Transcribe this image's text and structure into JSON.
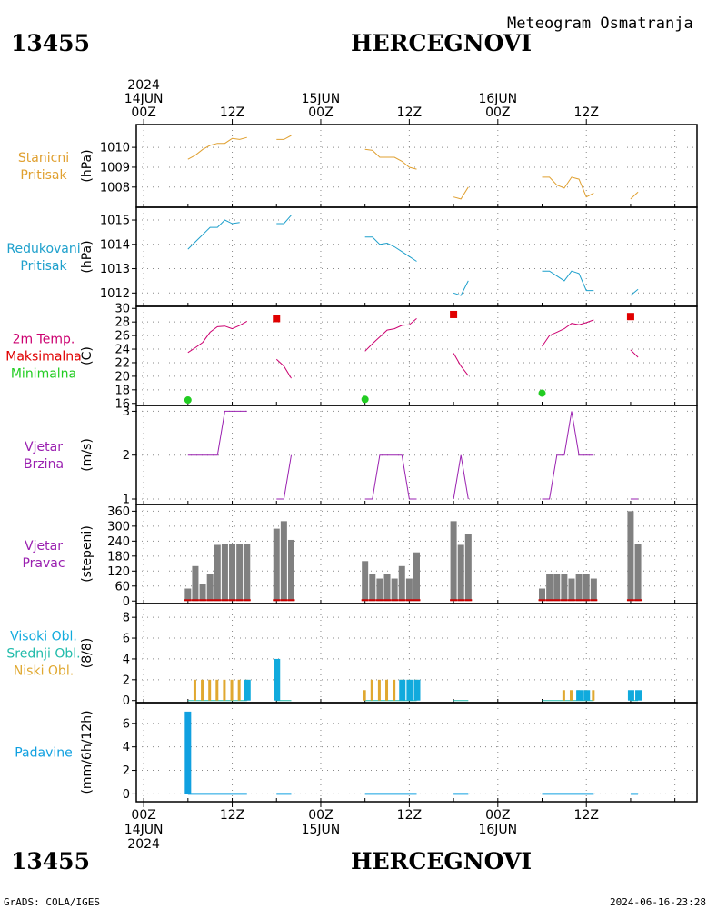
{
  "header": {
    "product": "Meteogram Osmatranja",
    "station_id": "13455",
    "station_name": "HERCEGNOVI"
  },
  "footer": {
    "credit": "GrADS: COLA/IGES",
    "timestamp": "2024-06-16-23:28"
  },
  "colors": {
    "pressure": "#e0a030",
    "reduced": "#1ea0cc",
    "tmax": "#e00000",
    "tmin": "#22cc22",
    "tcurve": "#cc0070",
    "wind": "#9a20b0",
    "bars": "#808080",
    "dir_base": "#cc0000",
    "cloud_high": "#10aadd",
    "cloud_mid": "#20bbaa",
    "cloud_low": "#e0a830",
    "precip": "#10a0e0"
  },
  "chart_data": {
    "type": "line",
    "time_axis": {
      "x_min": -1,
      "x_max": 75,
      "top_labels": [
        {
          "x": 0,
          "lines": [
            "2024",
            "14JUN",
            "00Z"
          ]
        },
        {
          "x": 12,
          "lines": [
            "12Z"
          ]
        },
        {
          "x": 24,
          "lines": [
            "15JUN",
            "00Z"
          ]
        },
        {
          "x": 36,
          "lines": [
            "12Z"
          ]
        },
        {
          "x": 48,
          "lines": [
            "16JUN",
            "00Z"
          ]
        },
        {
          "x": 60,
          "lines": [
            "12Z"
          ]
        }
      ],
      "bottom_labels": [
        {
          "x": 0,
          "lines": [
            "00Z",
            "14JUN",
            "2024"
          ]
        },
        {
          "x": 12,
          "lines": [
            "12Z"
          ]
        },
        {
          "x": 24,
          "lines": [
            "00Z",
            "15JUN"
          ]
        },
        {
          "x": 36,
          "lines": [
            "12Z"
          ]
        },
        {
          "x": 48,
          "lines": [
            "00Z",
            "16JUN"
          ]
        },
        {
          "x": 60,
          "lines": [
            "12Z"
          ]
        }
      ]
    },
    "panels": [
      {
        "key": "stp",
        "type": "line",
        "title": [
          "Stanicni",
          "Pritisak"
        ],
        "title_colors": [
          "pressure",
          "pressure"
        ],
        "unit": "(hPa)",
        "ylim": [
          1007.35,
          1010.6
        ],
        "yticks": [
          1008,
          1009,
          1010
        ],
        "color": "pressure",
        "segments": [
          [
            [
              6,
              1009.4
            ],
            [
              7,
              1009.6
            ],
            [
              8,
              1009.9
            ],
            [
              9,
              1010.1
            ],
            [
              10,
              1010.2
            ],
            [
              11,
              1010.2
            ],
            [
              12,
              1010.45
            ],
            [
              13,
              1010.4
            ],
            [
              14,
              1010.5
            ]
          ],
          [
            [
              18,
              1010.4
            ],
            [
              19,
              1010.4
            ],
            [
              20,
              1010.6
            ]
          ],
          [
            [
              30,
              1009.9
            ],
            [
              31,
              1009.85
            ],
            [
              32,
              1009.5
            ],
            [
              33,
              1009.5
            ],
            [
              34,
              1009.5
            ],
            [
              35,
              1009.3
            ],
            [
              36,
              1009.0
            ],
            [
              37,
              1008.9
            ]
          ],
          [
            [
              42,
              1007.5
            ],
            [
              43,
              1007.4
            ],
            [
              44,
              1008.0
            ]
          ],
          [
            [
              54,
              1008.5
            ],
            [
              55,
              1008.5
            ],
            [
              56,
              1008.1
            ],
            [
              57,
              1007.95
            ],
            [
              58,
              1008.5
            ],
            [
              59,
              1008.4
            ],
            [
              60,
              1007.5
            ],
            [
              61,
              1007.7
            ]
          ],
          [
            [
              66,
              1007.4
            ],
            [
              67,
              1007.75
            ]
          ]
        ]
      },
      {
        "key": "red",
        "type": "line",
        "title": [
          "Redukovani",
          "Pritisak"
        ],
        "title_colors": [
          "reduced",
          "reduced"
        ],
        "unit": "(hPa)",
        "ylim": [
          1011.75,
          1015.3
        ],
        "yticks": [
          1012,
          1013,
          1014,
          1015
        ],
        "color": "reduced",
        "segments": [
          [
            [
              6,
              1013.8
            ],
            [
              7,
              1014.1
            ],
            [
              8,
              1014.4
            ],
            [
              9,
              1014.7
            ],
            [
              10,
              1014.7
            ],
            [
              11,
              1015.0
            ],
            [
              12,
              1014.85
            ],
            [
              13,
              1014.9
            ]
          ],
          [
            [
              18,
              1014.85
            ],
            [
              19,
              1014.85
            ],
            [
              20,
              1015.2
            ]
          ],
          [
            [
              30,
              1014.3
            ],
            [
              31,
              1014.3
            ],
            [
              32,
              1014.0
            ],
            [
              33,
              1014.05
            ],
            [
              34,
              1013.9
            ],
            [
              35,
              1013.7
            ],
            [
              36,
              1013.5
            ],
            [
              37,
              1013.3
            ]
          ],
          [
            [
              42,
              1012.0
            ],
            [
              43,
              1011.9
            ],
            [
              44,
              1012.5
            ]
          ],
          [
            [
              54,
              1012.9
            ],
            [
              55,
              1012.9
            ],
            [
              56,
              1012.7
            ],
            [
              57,
              1012.5
            ],
            [
              58,
              1012.9
            ],
            [
              59,
              1012.8
            ],
            [
              60,
              1012.1
            ],
            [
              61,
              1012.1
            ]
          ],
          [
            [
              66,
              1011.9
            ],
            [
              67,
              1012.15
            ]
          ]
        ]
      },
      {
        "key": "temp",
        "type": "line",
        "title": [
          "2m Temp.",
          "Maksimalna",
          "Minimalna"
        ],
        "title_colors": [
          "tcurve",
          "tmax",
          "tmin"
        ],
        "unit": "(C)",
        "ylim": [
          15.7,
          30.3
        ],
        "yticks": [
          16,
          18,
          20,
          22,
          24,
          26,
          28,
          30
        ],
        "color": "tcurve",
        "segments": [
          [
            [
              6,
              23.5
            ],
            [
              7,
              24.2
            ],
            [
              8,
              25.0
            ],
            [
              9,
              26.5
            ],
            [
              10,
              27.3
            ],
            [
              11,
              27.4
            ],
            [
              12,
              27.0
            ],
            [
              13,
              27.5
            ],
            [
              14,
              28.1
            ]
          ],
          [
            [
              18,
              22.5
            ],
            [
              19,
              21.5
            ],
            [
              20,
              19.7
            ]
          ],
          [
            [
              30,
              23.7
            ],
            [
              31,
              24.8
            ],
            [
              32,
              25.8
            ],
            [
              33,
              26.8
            ],
            [
              34,
              27.0
            ],
            [
              35,
              27.5
            ],
            [
              36,
              27.6
            ],
            [
              37,
              28.5
            ]
          ],
          [
            [
              42,
              23.4
            ],
            [
              43,
              21.5
            ],
            [
              44,
              20.1
            ]
          ],
          [
            [
              54,
              24.4
            ],
            [
              55,
              26.0
            ],
            [
              56,
              26.5
            ],
            [
              57,
              27.0
            ],
            [
              58,
              27.8
            ],
            [
              59,
              27.6
            ],
            [
              60,
              27.9
            ],
            [
              61,
              28.3
            ]
          ],
          [
            [
              66,
              23.9
            ],
            [
              67,
              22.8
            ]
          ]
        ],
        "tmax_points": [
          [
            18,
            28.5
          ],
          [
            42,
            29.1
          ],
          [
            66,
            28.8
          ]
        ],
        "tmin_points": [
          [
            6,
            16.5
          ],
          [
            30,
            16.6
          ],
          [
            54,
            17.5
          ]
        ]
      },
      {
        "key": "wind",
        "type": "line",
        "title": [
          "Vjetar",
          "Brzina"
        ],
        "title_colors": [
          "wind",
          "wind"
        ],
        "unit": "(m/s)",
        "ylim": [
          1,
          3.05
        ],
        "yticks": [
          1,
          2,
          3
        ],
        "color": "wind",
        "segments": [
          [
            [
              6,
              2
            ],
            [
              7,
              2
            ],
            [
              8,
              2
            ],
            [
              9,
              2
            ],
            [
              10,
              2
            ],
            [
              11,
              3
            ],
            [
              12,
              3
            ],
            [
              13,
              3
            ],
            [
              14,
              3
            ]
          ],
          [
            [
              18,
              1
            ],
            [
              19,
              1
            ],
            [
              20,
              2
            ]
          ],
          [
            [
              30,
              1
            ],
            [
              31,
              1
            ],
            [
              32,
              2
            ],
            [
              33,
              2
            ],
            [
              34,
              2
            ],
            [
              35,
              2
            ],
            [
              36,
              1
            ],
            [
              37,
              1
            ]
          ],
          [
            [
              42,
              1
            ],
            [
              43,
              2
            ],
            [
              44,
              1
            ]
          ],
          [
            [
              54,
              1
            ],
            [
              55,
              1
            ],
            [
              56,
              2
            ],
            [
              57,
              2
            ],
            [
              58,
              3
            ],
            [
              59,
              2
            ],
            [
              60,
              2
            ],
            [
              61,
              2
            ]
          ],
          [
            [
              66,
              1
            ],
            [
              67,
              1
            ]
          ]
        ]
      },
      {
        "key": "dir",
        "type": "bar",
        "title": [
          "Vjetar",
          "Pravac"
        ],
        "title_colors": [
          "wind",
          "wind"
        ],
        "unit": "(stepeni)",
        "ylim": [
          -10,
          365
        ],
        "yticks": [
          0,
          60,
          120,
          180,
          240,
          300,
          360
        ],
        "color": "bars",
        "bars": [
          [
            6,
            50
          ],
          [
            7,
            140
          ],
          [
            8,
            70
          ],
          [
            9,
            110
          ],
          [
            10,
            225
          ],
          [
            11,
            230
          ],
          [
            12,
            230
          ],
          [
            13,
            230
          ],
          [
            14,
            230
          ],
          [
            18,
            290
          ],
          [
            19,
            320
          ],
          [
            20,
            245
          ],
          [
            30,
            160
          ],
          [
            31,
            110
          ],
          [
            32,
            90
          ],
          [
            33,
            110
          ],
          [
            34,
            90
          ],
          [
            35,
            140
          ],
          [
            36,
            90
          ],
          [
            37,
            195
          ],
          [
            42,
            320
          ],
          [
            43,
            225
          ],
          [
            44,
            270
          ],
          [
            54,
            50
          ],
          [
            55,
            110
          ],
          [
            56,
            110
          ],
          [
            57,
            110
          ],
          [
            58,
            90
          ],
          [
            59,
            110
          ],
          [
            60,
            110
          ],
          [
            61,
            90
          ],
          [
            66,
            360
          ],
          [
            67,
            230
          ]
        ]
      },
      {
        "key": "cloud",
        "type": "bar",
        "title": [
          "Visoki Obl.",
          "Srednji Obl.",
          "Niski Obl."
        ],
        "title_colors": [
          "cloud_high",
          "cloud_mid",
          "cloud_low"
        ],
        "unit": "(8/8)",
        "ylim": [
          -0.2,
          8.8
        ],
        "yticks": [
          0,
          2,
          4,
          6,
          8
        ],
        "low": [
          [
            7,
            2
          ],
          [
            8,
            2
          ],
          [
            9,
            2
          ],
          [
            10,
            2
          ],
          [
            11,
            2
          ],
          [
            12,
            2
          ],
          [
            13,
            2
          ],
          [
            14,
            2
          ],
          [
            30,
            1
          ],
          [
            31,
            2
          ],
          [
            32,
            2
          ],
          [
            33,
            2
          ],
          [
            34,
            2
          ],
          [
            35,
            2
          ],
          [
            36,
            2
          ],
          [
            37,
            2
          ],
          [
            57,
            1
          ],
          [
            58,
            1
          ],
          [
            59,
            1
          ],
          [
            60,
            1
          ],
          [
            61,
            1
          ]
        ],
        "high": [
          [
            14,
            2
          ],
          [
            18,
            4
          ],
          [
            35,
            2
          ],
          [
            36,
            2
          ],
          [
            37,
            2
          ],
          [
            59,
            1
          ],
          [
            60,
            1
          ],
          [
            66,
            1
          ],
          [
            67,
            1
          ]
        ]
      },
      {
        "key": "precip",
        "type": "bar",
        "title": [
          "Padavine"
        ],
        "title_colors": [
          "precip"
        ],
        "unit": "(mm/6h/12h)",
        "ylim": [
          -0.2,
          7.3
        ],
        "yticks": [
          0,
          2,
          4,
          6
        ],
        "color": "precip",
        "bars": [
          [
            6,
            7.0
          ]
        ],
        "trace": [
          [
            6,
            14
          ],
          [
            18,
            20
          ],
          [
            30,
            37
          ],
          [
            42,
            44
          ],
          [
            54,
            61
          ],
          [
            66,
            67
          ]
        ]
      }
    ]
  }
}
